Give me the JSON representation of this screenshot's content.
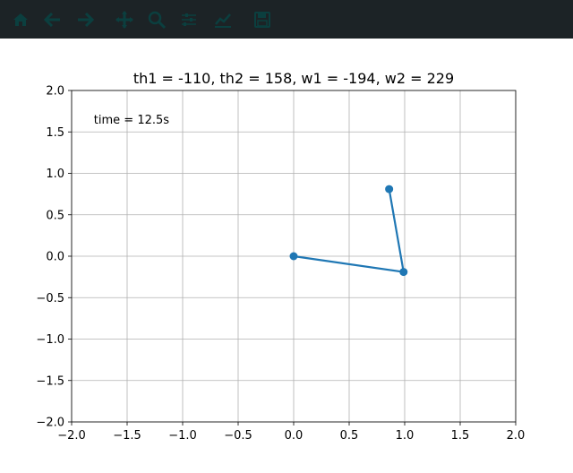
{
  "toolbar": {
    "buttons": [
      {
        "name": "home-button",
        "icon": "home-icon"
      },
      {
        "name": "back-button",
        "icon": "arrow-left-icon"
      },
      {
        "name": "forward-button",
        "icon": "arrow-right-icon"
      },
      {
        "name": "pan-button",
        "icon": "move-icon"
      },
      {
        "name": "zoom-button",
        "icon": "magnifier-icon"
      },
      {
        "name": "configure-subplots-button",
        "icon": "sliders-icon"
      },
      {
        "name": "edit-axis-button",
        "icon": "chart-edit-icon"
      },
      {
        "name": "save-button",
        "icon": "floppy-disk-icon"
      }
    ],
    "icon_color": "#0b3f3f"
  },
  "figure": {
    "title": "th1 = -110, th2 = 158, w1 = -194, w2 = 229",
    "annotation": "time = 12.5s"
  },
  "chart_data": {
    "type": "line",
    "title": "th1 = -110, th2 = 158, w1 = -194, w2 = 229",
    "xlabel": "",
    "ylabel": "",
    "xlim": [
      -2.0,
      2.0
    ],
    "ylim": [
      -2.0,
      2.0
    ],
    "xticks": [
      -2.0,
      -1.5,
      -1.0,
      -0.5,
      0.0,
      0.5,
      1.0,
      1.5,
      2.0
    ],
    "yticks": [
      -2.0,
      -1.5,
      -1.0,
      -0.5,
      0.0,
      0.5,
      1.0,
      1.5,
      2.0
    ],
    "xtick_labels": [
      "−2.0",
      "−1.5",
      "−1.0",
      "−0.5",
      "0.0",
      "0.5",
      "1.0",
      "1.5",
      "2.0"
    ],
    "ytick_labels": [
      "−2.0",
      "−1.5",
      "−1.0",
      "−0.5",
      "0.0",
      "0.5",
      "1.0",
      "1.5",
      "2.0"
    ],
    "grid": true,
    "series": [
      {
        "x": [
          0.0,
          0.99,
          0.86
        ],
        "y": [
          0.0,
          -0.19,
          0.81
        ],
        "color": "#1f77b4",
        "marker": "circle"
      }
    ]
  }
}
